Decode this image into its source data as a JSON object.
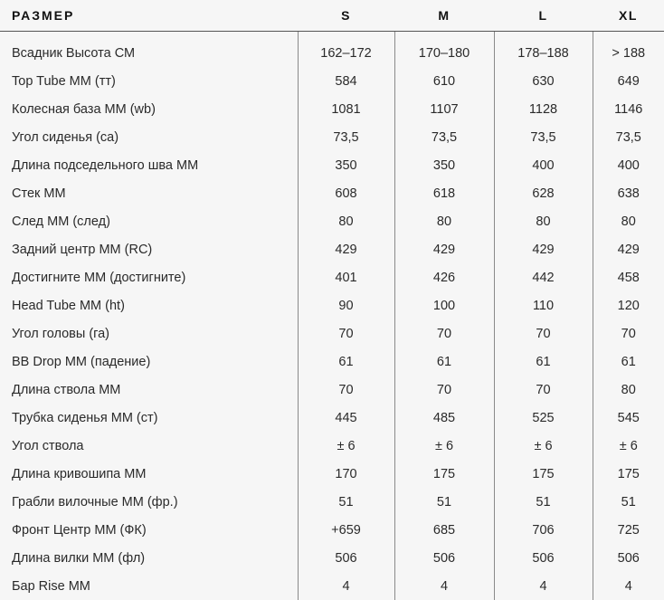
{
  "header": {
    "label": "РАЗМЕР",
    "sizes": [
      "S",
      "M",
      "L",
      "XL"
    ]
  },
  "rows": [
    {
      "label": "Всадник Высота СМ",
      "values": [
        "162–172",
        "170–180",
        "178–188",
        "> 188"
      ]
    },
    {
      "label": "Top Tube ММ (тт)",
      "values": [
        "584",
        "610",
        "630",
        "649"
      ]
    },
    {
      "label": "Колесная база ММ (wb)",
      "values": [
        "1081",
        "1107",
        "1128",
        "1146"
      ]
    },
    {
      "label": "Угол сиденья (са)",
      "values": [
        "73,5",
        "73,5",
        "73,5",
        "73,5"
      ]
    },
    {
      "label": "Длина подседельного шва ММ",
      "values": [
        "350",
        "350",
        "400",
        "400"
      ]
    },
    {
      "label": "Стек ММ",
      "values": [
        "608",
        "618",
        "628",
        "638"
      ]
    },
    {
      "label": "След ММ (след)",
      "values": [
        "80",
        "80",
        "80",
        "80"
      ]
    },
    {
      "label": "Задний центр ММ (RC)",
      "values": [
        "429",
        "429",
        "429",
        "429"
      ]
    },
    {
      "label": "Достигните ММ (достигните)",
      "values": [
        "401",
        "426",
        "442",
        "458"
      ]
    },
    {
      "label": "Head Tube ММ (ht)",
      "values": [
        "90",
        "100",
        "110",
        "120"
      ]
    },
    {
      "label": "Угол головы (га)",
      "values": [
        "70",
        "70",
        "70",
        "70"
      ]
    },
    {
      "label": "BB Drop ММ (падение)",
      "values": [
        "61",
        "61",
        "61",
        "61"
      ]
    },
    {
      "label": "Длина ствола ММ",
      "values": [
        "70",
        "70",
        "70",
        "80"
      ]
    },
    {
      "label": "Трубка сиденья ММ (ст)",
      "values": [
        "445",
        "485",
        "525",
        "545"
      ]
    },
    {
      "label": "Угол ствола",
      "values": [
        "± 6",
        "± 6",
        "± 6",
        "± 6"
      ]
    },
    {
      "label": "Длина кривошипа ММ",
      "values": [
        "170",
        "175",
        "175",
        "175"
      ]
    },
    {
      "label": "Грабли вилочные ММ (фр.)",
      "values": [
        "51",
        "51",
        "51",
        "51"
      ]
    },
    {
      "label": "Фронт Центр ММ (ФК)",
      "values": [
        "+659",
        "685",
        "706",
        "725"
      ]
    },
    {
      "label": "Длина вилки ММ (фл)",
      "values": [
        "506",
        "506",
        "506",
        "506"
      ]
    },
    {
      "label": "Бар Rise ММ",
      "values": [
        "4",
        "4",
        "4",
        "4"
      ]
    }
  ]
}
